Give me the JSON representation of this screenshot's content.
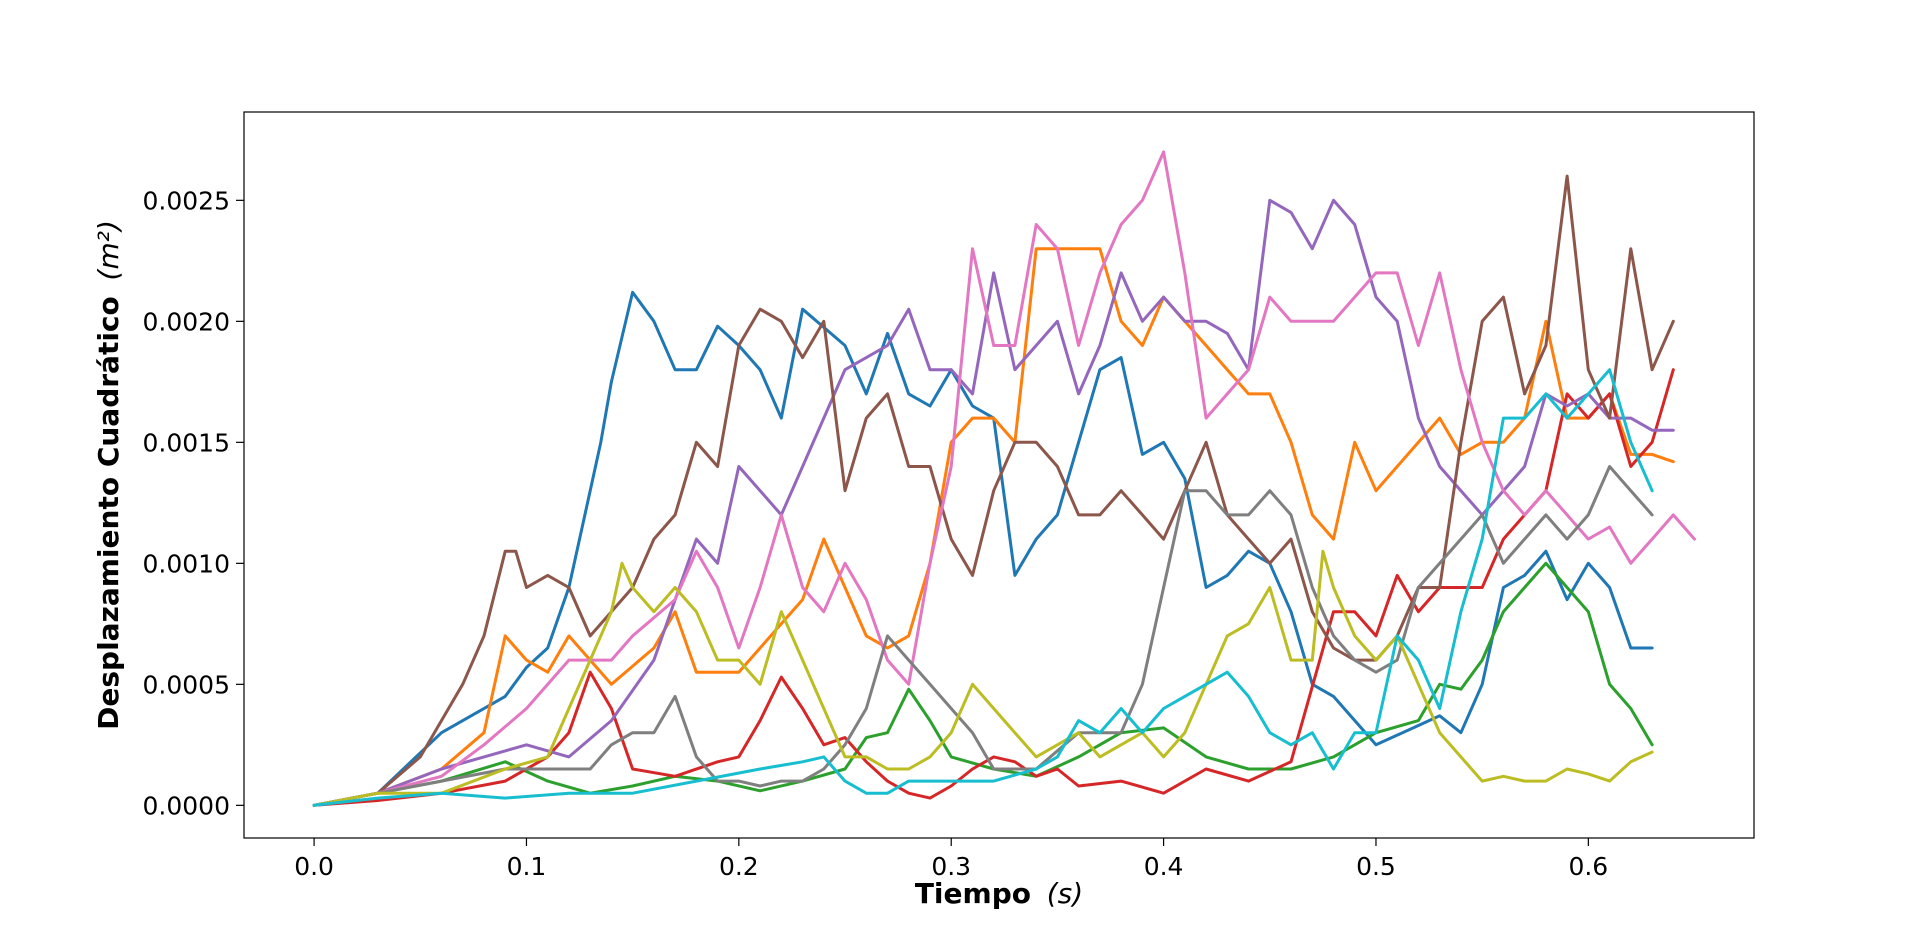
{
  "chart_data": {
    "type": "line",
    "title": "",
    "xlabel": "Tiempo",
    "xlabel_unit": "(s)",
    "ylabel": "Desplazamiento Cuadrático",
    "ylabel_unit": "(m²)",
    "xlim": [
      -0.033,
      0.678
    ],
    "ylim": [
      -0.000135,
      0.002865
    ],
    "x_ticks": [
      "0.0",
      "0.1",
      "0.2",
      "0.3",
      "0.4",
      "0.5",
      "0.6"
    ],
    "y_ticks": [
      "0.0000",
      "0.0005",
      "0.0010",
      "0.0015",
      "0.0020",
      "0.0025"
    ],
    "grid": false,
    "legend": "none",
    "series": [
      {
        "color": "#1f77b4",
        "x": [
          0,
          0.03,
          0.06,
          0.09,
          0.1,
          0.11,
          0.12,
          0.13,
          0.135,
          0.14,
          0.15,
          0.16,
          0.17,
          0.18,
          0.19,
          0.2,
          0.21,
          0.22,
          0.23,
          0.25,
          0.26,
          0.27,
          0.28,
          0.29,
          0.3,
          0.31,
          0.32,
          0.33,
          0.34,
          0.35,
          0.36,
          0.37,
          0.38,
          0.39,
          0.4,
          0.41,
          0.42,
          0.43,
          0.44,
          0.45,
          0.46,
          0.47,
          0.48,
          0.5,
          0.52,
          0.53,
          0.54,
          0.55,
          0.56,
          0.57,
          0.58,
          0.59,
          0.6,
          0.61,
          0.62,
          0.63
        ],
        "y": [
          0,
          5e-05,
          0.0003,
          0.00045,
          0.00057,
          0.00065,
          0.0009,
          0.0013,
          0.0015,
          0.00175,
          0.00212,
          0.002,
          0.0018,
          0.0018,
          0.00198,
          0.0019,
          0.0018,
          0.0016,
          0.00205,
          0.0019,
          0.0017,
          0.00195,
          0.0017,
          0.00165,
          0.0018,
          0.00165,
          0.0016,
          0.00095,
          0.0011,
          0.0012,
          0.0015,
          0.0018,
          0.00185,
          0.00145,
          0.0015,
          0.00135,
          0.0009,
          0.00095,
          0.00105,
          0.001,
          0.0008,
          0.0005,
          0.00045,
          0.00025,
          0.00033,
          0.00037,
          0.0003,
          0.0005,
          0.0009,
          0.00095,
          0.00105,
          0.00085,
          0.001,
          0.0009,
          0.00065,
          0.00065
        ]
      },
      {
        "color": "#ff7f0e",
        "x": [
          0,
          0.03,
          0.06,
          0.08,
          0.09,
          0.1,
          0.11,
          0.12,
          0.13,
          0.14,
          0.16,
          0.17,
          0.18,
          0.2,
          0.21,
          0.22,
          0.23,
          0.24,
          0.25,
          0.26,
          0.27,
          0.28,
          0.29,
          0.3,
          0.31,
          0.32,
          0.33,
          0.34,
          0.35,
          0.36,
          0.37,
          0.38,
          0.39,
          0.4,
          0.41,
          0.42,
          0.43,
          0.44,
          0.45,
          0.46,
          0.47,
          0.48,
          0.49,
          0.5,
          0.51,
          0.52,
          0.53,
          0.54,
          0.55,
          0.56,
          0.57,
          0.58,
          0.59,
          0.6,
          0.61,
          0.62,
          0.63,
          0.64
        ],
        "y": [
          0,
          5e-05,
          0.00015,
          0.0003,
          0.0007,
          0.0006,
          0.00055,
          0.0007,
          0.0006,
          0.0005,
          0.00065,
          0.0008,
          0.00055,
          0.00055,
          0.00065,
          0.00075,
          0.00085,
          0.0011,
          0.0009,
          0.0007,
          0.00065,
          0.0007,
          0.001,
          0.0015,
          0.0016,
          0.0016,
          0.0015,
          0.0023,
          0.0023,
          0.0023,
          0.0023,
          0.002,
          0.0019,
          0.0021,
          0.002,
          0.0019,
          0.0018,
          0.0017,
          0.0017,
          0.0015,
          0.0012,
          0.0011,
          0.0015,
          0.0013,
          0.0014,
          0.0015,
          0.0016,
          0.00145,
          0.0015,
          0.0015,
          0.0016,
          0.002,
          0.0016,
          0.0016,
          0.0017,
          0.00145,
          0.00145,
          0.00142
        ]
      },
      {
        "color": "#2ca02c",
        "x": [
          0,
          0.03,
          0.06,
          0.09,
          0.11,
          0.13,
          0.15,
          0.17,
          0.19,
          0.21,
          0.23,
          0.25,
          0.26,
          0.27,
          0.28,
          0.29,
          0.3,
          0.32,
          0.34,
          0.36,
          0.38,
          0.4,
          0.42,
          0.44,
          0.46,
          0.48,
          0.5,
          0.52,
          0.53,
          0.54,
          0.55,
          0.56,
          0.57,
          0.58,
          0.59,
          0.6,
          0.61,
          0.62,
          0.63
        ],
        "y": [
          0,
          5e-05,
          0.0001,
          0.00018,
          0.0001,
          5e-05,
          8e-05,
          0.00012,
          0.0001,
          6e-05,
          0.0001,
          0.00015,
          0.00028,
          0.0003,
          0.00048,
          0.00035,
          0.0002,
          0.00015,
          0.00012,
          0.0002,
          0.0003,
          0.00032,
          0.0002,
          0.00015,
          0.00015,
          0.0002,
          0.0003,
          0.00035,
          0.0005,
          0.00048,
          0.0006,
          0.0008,
          0.0009,
          0.001,
          0.0009,
          0.0008,
          0.0005,
          0.0004,
          0.00025
        ]
      },
      {
        "color": "#d62728",
        "x": [
          0,
          0.03,
          0.06,
          0.09,
          0.11,
          0.12,
          0.13,
          0.14,
          0.15,
          0.17,
          0.19,
          0.2,
          0.21,
          0.22,
          0.23,
          0.24,
          0.25,
          0.26,
          0.27,
          0.28,
          0.29,
          0.3,
          0.31,
          0.32,
          0.33,
          0.34,
          0.35,
          0.36,
          0.38,
          0.4,
          0.42,
          0.44,
          0.46,
          0.48,
          0.49,
          0.5,
          0.51,
          0.52,
          0.53,
          0.55,
          0.56,
          0.58,
          0.59,
          0.6,
          0.61,
          0.62,
          0.63,
          0.64
        ],
        "y": [
          0,
          2e-05,
          5e-05,
          0.0001,
          0.0002,
          0.0003,
          0.00055,
          0.0004,
          0.00015,
          0.00012,
          0.00018,
          0.0002,
          0.00035,
          0.00053,
          0.0004,
          0.00025,
          0.00028,
          0.00018,
          0.0001,
          5e-05,
          3e-05,
          8e-05,
          0.00015,
          0.0002,
          0.00018,
          0.00012,
          0.00015,
          8e-05,
          0.0001,
          5e-05,
          0.00015,
          0.0001,
          0.00018,
          0.0008,
          0.0008,
          0.0007,
          0.00095,
          0.0008,
          0.0009,
          0.0009,
          0.0011,
          0.0013,
          0.0017,
          0.0016,
          0.0017,
          0.0014,
          0.0015,
          0.0018
        ]
      },
      {
        "color": "#9467bd",
        "x": [
          0,
          0.03,
          0.06,
          0.08,
          0.1,
          0.12,
          0.14,
          0.16,
          0.18,
          0.19,
          0.2,
          0.21,
          0.22,
          0.23,
          0.25,
          0.27,
          0.28,
          0.29,
          0.3,
          0.31,
          0.32,
          0.33,
          0.34,
          0.35,
          0.36,
          0.37,
          0.38,
          0.39,
          0.4,
          0.41,
          0.42,
          0.43,
          0.44,
          0.45,
          0.46,
          0.47,
          0.48,
          0.49,
          0.5,
          0.51,
          0.52,
          0.53,
          0.54,
          0.55,
          0.56,
          0.57,
          0.58,
          0.59,
          0.6,
          0.61,
          0.62,
          0.63,
          0.64
        ],
        "y": [
          0,
          5e-05,
          0.00015,
          0.0002,
          0.00025,
          0.0002,
          0.00035,
          0.0006,
          0.0011,
          0.001,
          0.0014,
          0.0013,
          0.0012,
          0.0014,
          0.0018,
          0.0019,
          0.00205,
          0.0018,
          0.0018,
          0.0017,
          0.0022,
          0.0018,
          0.0019,
          0.002,
          0.0017,
          0.0019,
          0.0022,
          0.002,
          0.0021,
          0.002,
          0.002,
          0.00195,
          0.0018,
          0.0025,
          0.00245,
          0.0023,
          0.0025,
          0.0024,
          0.0021,
          0.002,
          0.0016,
          0.0014,
          0.0013,
          0.0012,
          0.0013,
          0.0014,
          0.0017,
          0.00165,
          0.0017,
          0.0016,
          0.0016,
          0.00155,
          0.00155
        ]
      },
      {
        "color": "#8c564b",
        "x": [
          0,
          0.03,
          0.05,
          0.07,
          0.08,
          0.09,
          0.095,
          0.1,
          0.11,
          0.12,
          0.13,
          0.14,
          0.15,
          0.16,
          0.17,
          0.18,
          0.19,
          0.2,
          0.21,
          0.22,
          0.23,
          0.24,
          0.25,
          0.26,
          0.27,
          0.28,
          0.29,
          0.3,
          0.31,
          0.32,
          0.33,
          0.34,
          0.35,
          0.36,
          0.37,
          0.38,
          0.39,
          0.4,
          0.41,
          0.42,
          0.43,
          0.44,
          0.45,
          0.46,
          0.47,
          0.48,
          0.49,
          0.5,
          0.51,
          0.52,
          0.53,
          0.54,
          0.55,
          0.56,
          0.57,
          0.58,
          0.59,
          0.6,
          0.61,
          0.62,
          0.63,
          0.64
        ],
        "y": [
          0,
          5e-05,
          0.0002,
          0.0005,
          0.0007,
          0.00105,
          0.00105,
          0.0009,
          0.00095,
          0.0009,
          0.0007,
          0.0008,
          0.0009,
          0.0011,
          0.0012,
          0.0015,
          0.0014,
          0.0019,
          0.00205,
          0.002,
          0.00185,
          0.002,
          0.0013,
          0.0016,
          0.0017,
          0.0014,
          0.0014,
          0.0011,
          0.00095,
          0.0013,
          0.0015,
          0.0015,
          0.0014,
          0.0012,
          0.0012,
          0.0013,
          0.0012,
          0.0011,
          0.0013,
          0.0015,
          0.0012,
          0.0011,
          0.001,
          0.0011,
          0.0008,
          0.00065,
          0.0006,
          0.0006,
          0.0007,
          0.0009,
          0.0009,
          0.0015,
          0.002,
          0.0021,
          0.0017,
          0.0019,
          0.0026,
          0.0018,
          0.0016,
          0.0023,
          0.0018,
          0.002
        ]
      },
      {
        "color": "#e377c2",
        "x": [
          0,
          0.03,
          0.06,
          0.08,
          0.1,
          0.12,
          0.14,
          0.15,
          0.17,
          0.18,
          0.19,
          0.2,
          0.21,
          0.22,
          0.23,
          0.24,
          0.25,
          0.26,
          0.27,
          0.28,
          0.29,
          0.3,
          0.31,
          0.32,
          0.33,
          0.34,
          0.35,
          0.36,
          0.37,
          0.38,
          0.39,
          0.4,
          0.41,
          0.42,
          0.43,
          0.44,
          0.45,
          0.46,
          0.47,
          0.48,
          0.49,
          0.5,
          0.51,
          0.52,
          0.53,
          0.54,
          0.55,
          0.56,
          0.57,
          0.58,
          0.59,
          0.6,
          0.61,
          0.62,
          0.63,
          0.64,
          0.65
        ],
        "y": [
          0,
          5e-05,
          0.00012,
          0.00025,
          0.0004,
          0.0006,
          0.0006,
          0.0007,
          0.00085,
          0.00105,
          0.0009,
          0.00065,
          0.0009,
          0.0012,
          0.0009,
          0.0008,
          0.001,
          0.00085,
          0.0006,
          0.0005,
          0.001,
          0.0014,
          0.0023,
          0.0019,
          0.0019,
          0.0024,
          0.0023,
          0.0019,
          0.0022,
          0.0024,
          0.0025,
          0.0027,
          0.0022,
          0.0016,
          0.0017,
          0.0018,
          0.0021,
          0.002,
          0.002,
          0.002,
          0.0021,
          0.0022,
          0.0022,
          0.0019,
          0.0022,
          0.0018,
          0.0015,
          0.0013,
          0.0012,
          0.0013,
          0.0012,
          0.0011,
          0.00115,
          0.001,
          0.0011,
          0.0012,
          0.0011
        ]
      },
      {
        "color": "#7f7f7f",
        "x": [
          0,
          0.03,
          0.06,
          0.09,
          0.11,
          0.13,
          0.14,
          0.15,
          0.16,
          0.17,
          0.18,
          0.19,
          0.2,
          0.21,
          0.22,
          0.23,
          0.24,
          0.25,
          0.26,
          0.27,
          0.28,
          0.29,
          0.3,
          0.31,
          0.32,
          0.34,
          0.36,
          0.38,
          0.39,
          0.4,
          0.41,
          0.42,
          0.43,
          0.44,
          0.45,
          0.46,
          0.47,
          0.48,
          0.49,
          0.5,
          0.51,
          0.52,
          0.53,
          0.54,
          0.55,
          0.56,
          0.57,
          0.58,
          0.59,
          0.6,
          0.61,
          0.62,
          0.63
        ],
        "y": [
          0,
          5e-05,
          0.0001,
          0.00015,
          0.00015,
          0.00015,
          0.00025,
          0.0003,
          0.0003,
          0.00045,
          0.0002,
          0.0001,
          0.0001,
          8e-05,
          0.0001,
          0.0001,
          0.00015,
          0.00025,
          0.0004,
          0.0007,
          0.0006,
          0.0005,
          0.0004,
          0.0003,
          0.00015,
          0.00015,
          0.0003,
          0.0003,
          0.0005,
          0.0009,
          0.0013,
          0.0013,
          0.0012,
          0.0012,
          0.0013,
          0.0012,
          0.0009,
          0.0007,
          0.0006,
          0.00055,
          0.0006,
          0.0009,
          0.001,
          0.0011,
          0.0012,
          0.001,
          0.0011,
          0.0012,
          0.0011,
          0.0012,
          0.0014,
          0.0013,
          0.0012
        ]
      },
      {
        "color": "#bcbd22",
        "x": [
          0,
          0.03,
          0.06,
          0.09,
          0.11,
          0.12,
          0.13,
          0.14,
          0.145,
          0.15,
          0.16,
          0.17,
          0.18,
          0.19,
          0.2,
          0.21,
          0.22,
          0.23,
          0.24,
          0.25,
          0.26,
          0.27,
          0.28,
          0.29,
          0.3,
          0.31,
          0.32,
          0.33,
          0.34,
          0.35,
          0.36,
          0.37,
          0.38,
          0.39,
          0.4,
          0.41,
          0.42,
          0.43,
          0.44,
          0.45,
          0.46,
          0.47,
          0.475,
          0.48,
          0.49,
          0.5,
          0.51,
          0.52,
          0.53,
          0.54,
          0.55,
          0.56,
          0.57,
          0.58,
          0.59,
          0.6,
          0.61,
          0.62,
          0.63
        ],
        "y": [
          0,
          5e-05,
          5e-05,
          0.00015,
          0.0002,
          0.0004,
          0.0006,
          0.0008,
          0.001,
          0.0009,
          0.0008,
          0.0009,
          0.0008,
          0.0006,
          0.0006,
          0.0005,
          0.0008,
          0.0006,
          0.0004,
          0.0002,
          0.0002,
          0.00015,
          0.00015,
          0.0002,
          0.0003,
          0.0005,
          0.0004,
          0.0003,
          0.0002,
          0.00025,
          0.0003,
          0.0002,
          0.00025,
          0.0003,
          0.0002,
          0.0003,
          0.0005,
          0.0007,
          0.00075,
          0.0009,
          0.0006,
          0.0006,
          0.00105,
          0.0009,
          0.0007,
          0.0006,
          0.0007,
          0.0005,
          0.0003,
          0.0002,
          0.0001,
          0.00012,
          0.0001,
          0.0001,
          0.00015,
          0.00013,
          0.0001,
          0.00018,
          0.00022
        ]
      },
      {
        "color": "#17becf",
        "x": [
          0,
          0.03,
          0.06,
          0.09,
          0.12,
          0.15,
          0.18,
          0.21,
          0.23,
          0.24,
          0.25,
          0.26,
          0.27,
          0.28,
          0.29,
          0.3,
          0.32,
          0.34,
          0.35,
          0.36,
          0.37,
          0.38,
          0.39,
          0.4,
          0.41,
          0.42,
          0.43,
          0.44,
          0.45,
          0.46,
          0.47,
          0.48,
          0.49,
          0.5,
          0.51,
          0.52,
          0.53,
          0.54,
          0.55,
          0.56,
          0.57,
          0.58,
          0.59,
          0.6,
          0.61,
          0.62,
          0.63
        ],
        "y": [
          0,
          3e-05,
          5e-05,
          3e-05,
          5e-05,
          5e-05,
          0.0001,
          0.00015,
          0.00018,
          0.0002,
          0.0001,
          5e-05,
          5e-05,
          0.0001,
          0.0001,
          0.0001,
          0.0001,
          0.00015,
          0.0002,
          0.00035,
          0.0003,
          0.0004,
          0.0003,
          0.0004,
          0.00045,
          0.0005,
          0.00055,
          0.00045,
          0.0003,
          0.00025,
          0.0003,
          0.00015,
          0.0003,
          0.0003,
          0.0007,
          0.0006,
          0.0004,
          0.0008,
          0.0011,
          0.0016,
          0.0016,
          0.0017,
          0.0016,
          0.0017,
          0.0018,
          0.0015,
          0.0013
        ]
      }
    ]
  }
}
